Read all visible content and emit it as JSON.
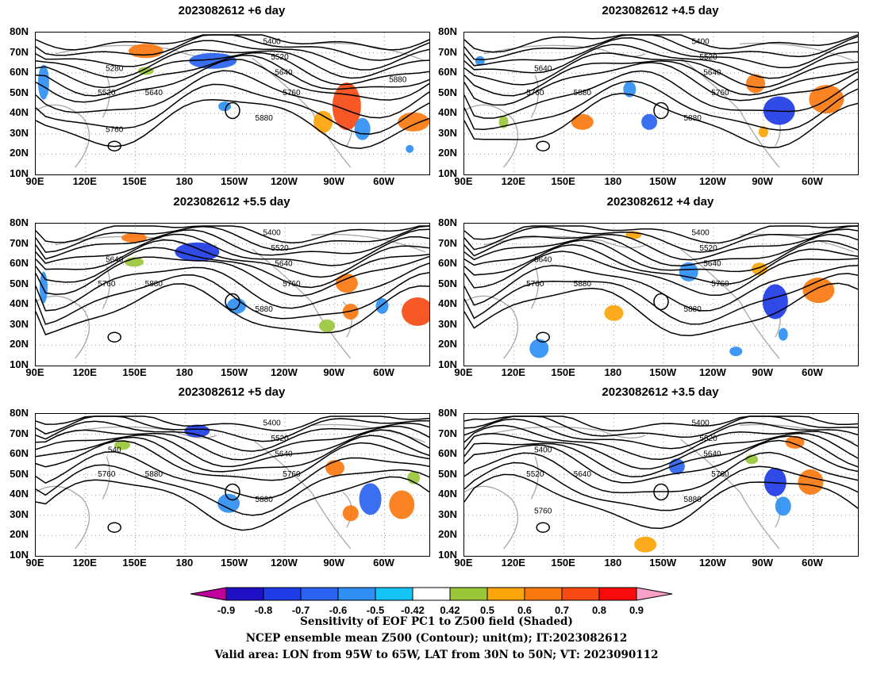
{
  "panels": [
    {
      "title": "2023082612  +6 day",
      "contour_labels": [
        "5400",
        "5520",
        "5640",
        "5760",
        "5880",
        "5280",
        "5520",
        "5640",
        "5760",
        "5880"
      ]
    },
    {
      "title": "2023082612  +4.5 day",
      "contour_labels": [
        "5400",
        "5520",
        "5640",
        "5760",
        "5880",
        "5640",
        "5760",
        "5880"
      ]
    },
    {
      "title": "2023082612  +5.5 day",
      "contour_labels": [
        "5400",
        "5520",
        "5640",
        "5760",
        "5880",
        "5640",
        "5760",
        "5880"
      ]
    },
    {
      "title": "2023082612  +4 day",
      "contour_labels": [
        "5400",
        "5520",
        "5640",
        "5760",
        "5880",
        "5640",
        "5760",
        "5880"
      ]
    },
    {
      "title": "2023082612  +5 day",
      "contour_labels": [
        "5400",
        "5520",
        "5640",
        "5760",
        "5880",
        "540",
        "5760",
        "5880"
      ]
    },
    {
      "title": "2023082612  +3.5 day",
      "contour_labels": [
        "5400",
        "5520",
        "5640",
        "5760",
        "5880",
        "5400",
        "5520",
        "5640",
        "5760"
      ]
    }
  ],
  "lat_ticks": [
    "80N",
    "70N",
    "60N",
    "50N",
    "40N",
    "30N",
    "20N",
    "10N"
  ],
  "lon_ticks": [
    "90E",
    "120E",
    "150E",
    "180",
    "150W",
    "120W",
    "90W",
    "60W"
  ],
  "colorbar": {
    "labels": [
      "-0.9",
      "-0.8",
      "-0.7",
      "-0.6",
      "-0.5",
      "-0.42",
      "0.42",
      "0.5",
      "0.6",
      "0.7",
      "0.8",
      "0.9"
    ],
    "colors": [
      "#c0009a",
      "#1f10c8",
      "#1e3ce6",
      "#2a63f0",
      "#2f8ff2",
      "#16c3f5",
      "#ffffff",
      "#9ac73a",
      "#fca40a",
      "#fa7a10",
      "#f74a12",
      "#f90b0b",
      "#f7a0c8"
    ]
  },
  "caption": {
    "line1": "Sensitivity of EOF PC1 to Z500 field (Shaded)",
    "line2": "NCEP ensemble mean Z500 (Contour); unit(m); IT:2023082612",
    "line3": "Valid area: LON from 95W to 65W, LAT from 30N to 50N; VT: 2023090112"
  }
}
